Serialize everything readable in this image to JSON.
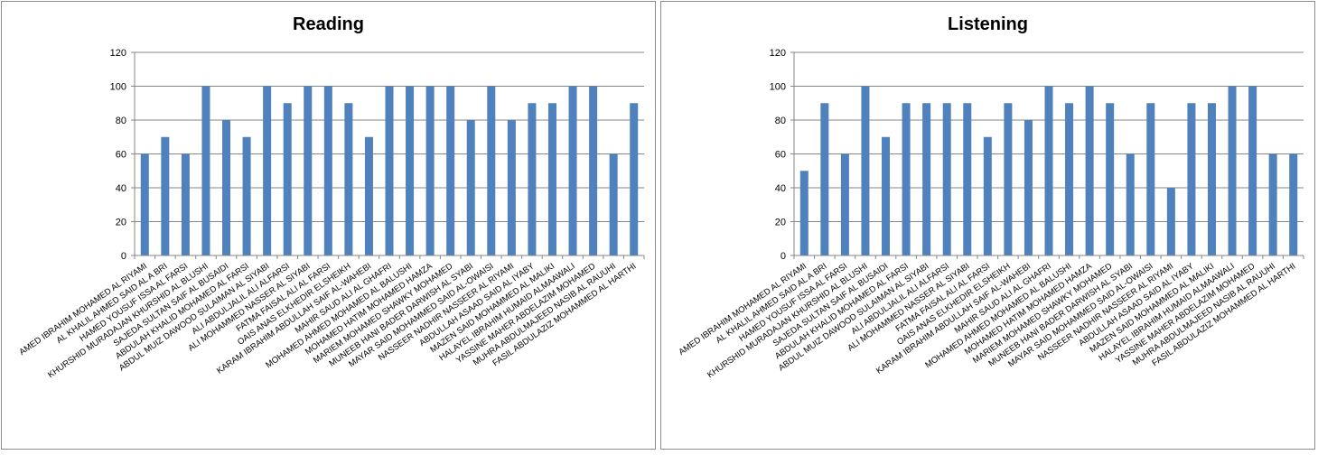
{
  "chart_data": [
    {
      "type": "bar",
      "title": "Reading",
      "categories": [
        "AMED IBRAHIM MOHAMED AL RIYAMI",
        "AL KHALIL AHMED SAID AL A BRI",
        "HAMED YOUSUF ISSA AL FARSI",
        "KHURSHID MURADAJAN KHURSHID AL BLUSHI",
        "SAJEDA SULTAN SAIF AL BUSAIDI",
        "ABDULAH KHALID MOHAMED AL FARSI",
        "ABDUL MUIZ  DAWOOD SULAIMAN AL SIYABI",
        "ALI ABDULJALIL ALI ALFARSI",
        "ALI MOHAMMED NASSER AL SIYABI",
        "FATMA FAISAL ALI AL FARSI",
        "OAIS ANAS ELKHEDIR ELSHEIKH",
        "KARAM IBRAHIM ABDULLAH SAIF AL-WAHEBI",
        "MAHIR SAUD ALI AL GHAFRI",
        "MOHAMED AHMED MOHAMED AL BALUSHI",
        "MOHAMED HATIM MOHAMED HAMZA",
        "MARIEM MOHAMED SHAWKY MOHAMED",
        "MUNEEB HANI BADER DARWISH AL SYABI",
        "MAYAR SAID MOHAMMED SAID AL-OWAISI",
        "NASSEER NADHIR NASSEER AL RIYAMI",
        "ABDULLAH ASAAD SAID AL IYABY",
        "MAZEN SAID MOHAMMED AL MALIKI",
        "HALAYEL IBRAHIM HUMAID ALMAAWALI",
        "YASSINE MAHER ABDELAZIM MOHAMED",
        "MUHRA ABDULMAJEED NASIB AL RAUUHI",
        "FASIL ABDULAZIZ MOHAMMED AL HARTHI"
      ],
      "values": [
        60,
        70,
        60,
        100,
        80,
        70,
        100,
        90,
        100,
        100,
        90,
        70,
        100,
        100,
        100,
        100,
        80,
        100,
        80,
        90,
        90,
        100,
        100,
        60,
        90
      ],
      "ylim": [
        0,
        120
      ],
      "yticks": [
        "0",
        "20",
        "40",
        "60",
        "80",
        "100",
        "120"
      ],
      "grid": true,
      "bar_color": "#4F81BD"
    },
    {
      "type": "bar",
      "title": "Listening",
      "categories": [
        "AMED IBRAHIM MOHAMED AL RIYAMI",
        "AL KHALIL AHMED SAID AL A BRI",
        "HAMED YOUSUF ISSA AL FARSI",
        "KHURSHID MURADAJAN KHURSHID AL BLUSHI",
        "SAJEDA SULTAN SAIF AL BUSAIDI",
        "ABDULAH KHALID MOHAMED AL FARSI",
        "ABDUL MUIZ  DAWOOD SULAIMAN AL SIYABI",
        "ALI ABDULJALIL ALI ALFARSI",
        "ALI MOHAMMED NASSER AL SIYABI",
        "FATMA FAISAL ALI AL FARSI",
        "OAIS ANAS ELKHEDIR ELSHEIKH",
        "KARAM IBRAHIM ABDULLAH SAIF AL-WAHEBI",
        "MAHIR SAUD ALI AL GHAFRI",
        "MOHAMED AHMED MOHAMED AL BALUSHI",
        "MOHAMED HATIM MOHAMED HAMZA",
        "MARIEM MOHAMED SHAWKY MOHAMED",
        "MUNEEB HANI BADER DARWISH AL SYABI",
        "MAYAR SAID MOHAMMED SAID AL-OWAISI",
        "NASSEER NADHIR NASSEER AL RIYAMI",
        "ABDULLAH ASAAD SAID AL IYABY",
        "MAZEN SAID MOHAMMED AL MALIKI",
        "HALAYEL IBRAHIM HUMAID ALMAAWALI",
        "YASSINE MAHER ABDELAZIM MOHAMED",
        "MUHRA ABDULMAJEED NASIB AL RAUUHI",
        "FASIL ABDULAZIZ MOHAMMED AL HARTHI"
      ],
      "values": [
        50,
        90,
        60,
        100,
        70,
        90,
        90,
        90,
        90,
        70,
        90,
        80,
        100,
        90,
        100,
        90,
        60,
        90,
        40,
        90,
        90,
        100,
        100,
        60,
        60
      ],
      "ylim": [
        0,
        120
      ],
      "yticks": [
        "0",
        "20",
        "40",
        "60",
        "80",
        "100",
        "120"
      ],
      "grid": true,
      "bar_color": "#4F81BD"
    }
  ]
}
